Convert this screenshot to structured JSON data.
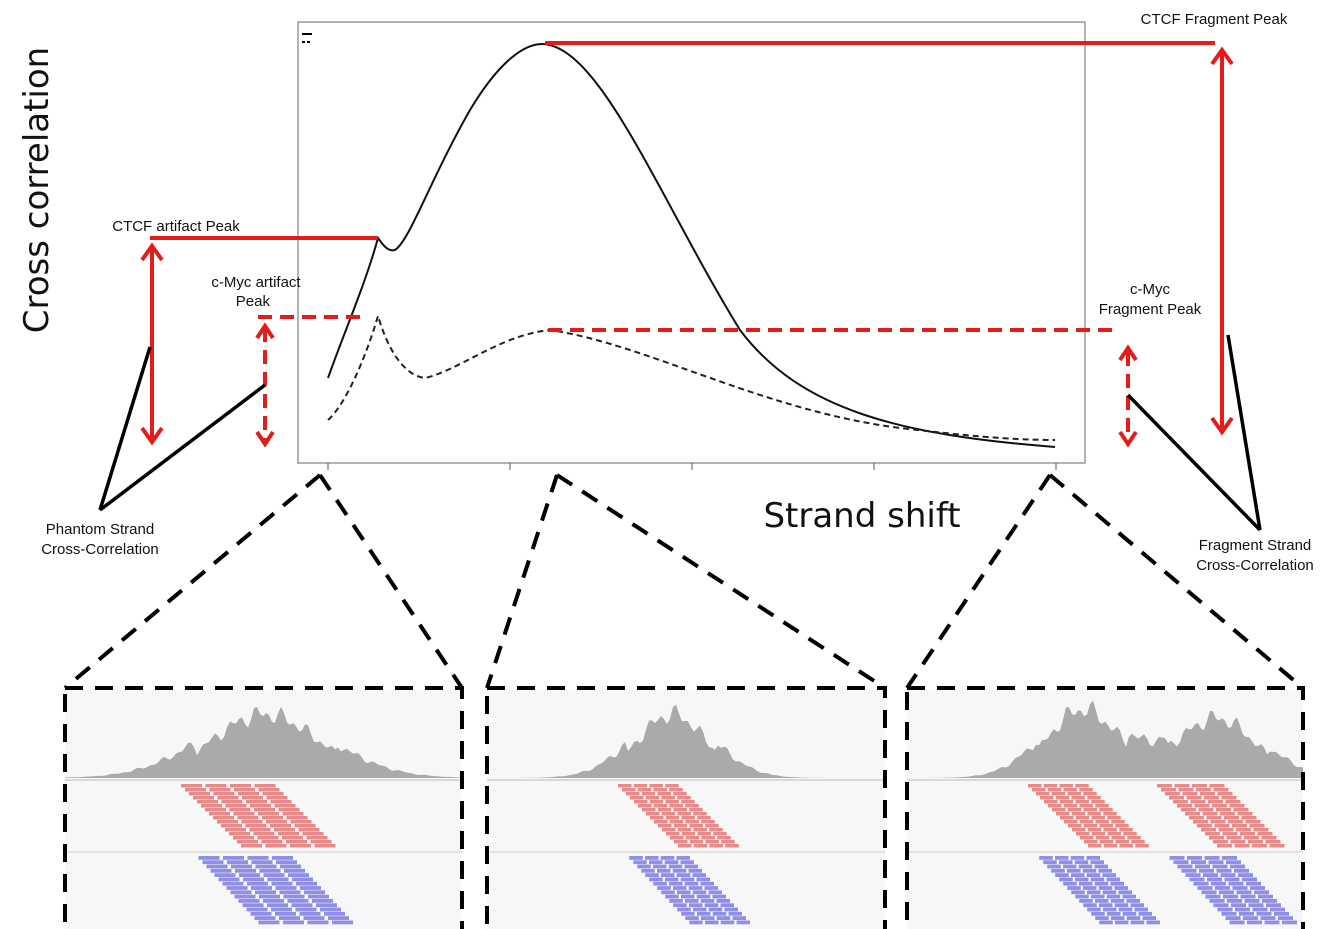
{
  "y_axis_label": "Cross correlation",
  "x_axis_label": "Strand shift",
  "annotations": {
    "ctcf_fragment_peak": "CTCF Fragment Peak",
    "ctcf_artifact_peak": "CTCF artifact Peak",
    "cmyc_artifact_peak": [
      "c-Myc artifact",
      "Peak"
    ],
    "cmyc_fragment_peak": [
      "c-Myc",
      "Fragment Peak"
    ],
    "phantom": [
      "Phantom Strand",
      "Cross-Correlation"
    ],
    "fragment": [
      "Fragment Strand",
      "Cross-Correlation"
    ]
  }
}
